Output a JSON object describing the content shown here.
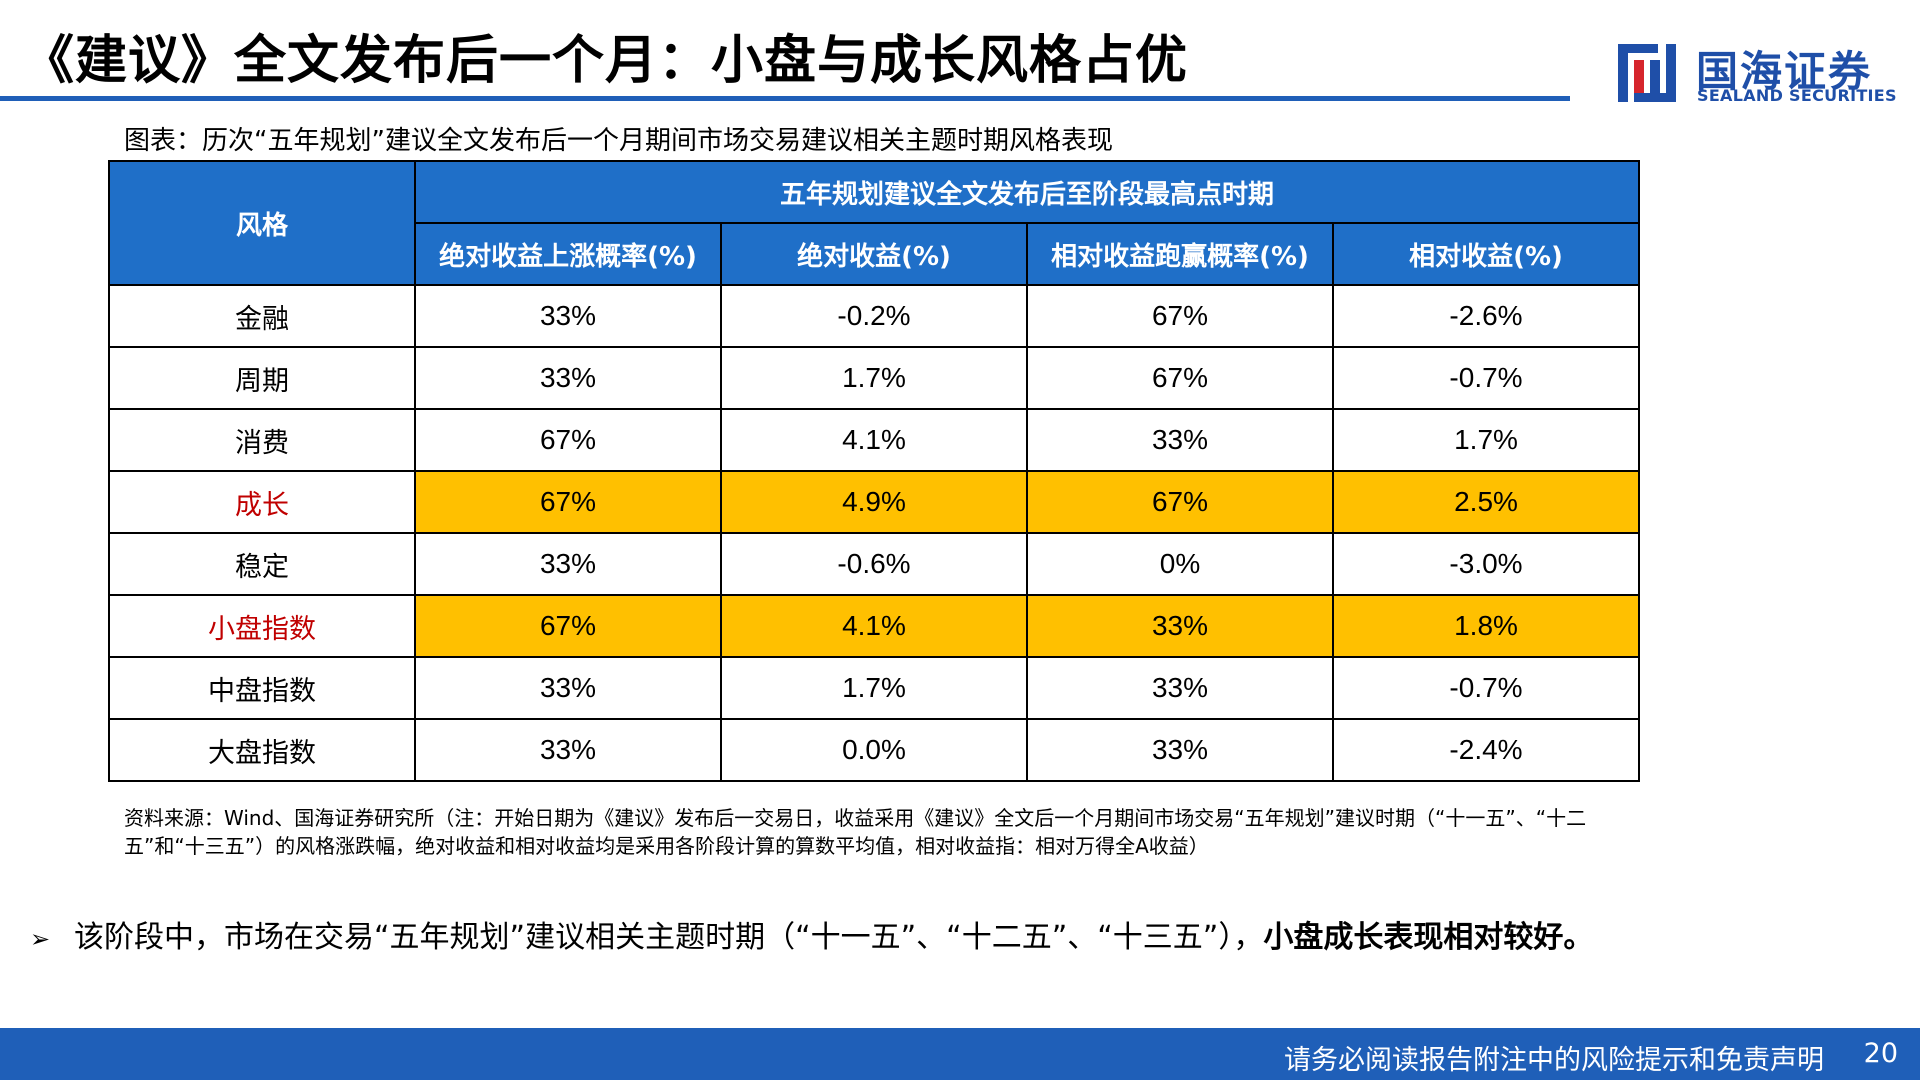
{
  "title": "《建议》全文发布后一个月：小盘与成长风格占优",
  "logo": {
    "cn": "国海证券",
    "en": "SEALAND SECURITIES"
  },
  "caption": "图表：历次“五年规划”建议全文发布后一个月期间市场交易建议相关主题时期风格表现",
  "table": {
    "corner_header": "风格",
    "group_header": "五年规划建议全文发布后至阶段最高点时期",
    "columns": [
      "绝对收益上涨概率(%)",
      "绝对收益(%)",
      "相对收益跑赢概率(%)",
      "相对收益(%)"
    ],
    "rows": [
      {
        "label": "金融",
        "values": [
          "33%",
          "-0.2%",
          "67%",
          "-2.6%"
        ],
        "highlight": false
      },
      {
        "label": "周期",
        "values": [
          "33%",
          "1.7%",
          "67%",
          "-0.7%"
        ],
        "highlight": false
      },
      {
        "label": "消费",
        "values": [
          "67%",
          "4.1%",
          "33%",
          "1.7%"
        ],
        "highlight": false
      },
      {
        "label": "成长",
        "values": [
          "67%",
          "4.9%",
          "67%",
          "2.5%"
        ],
        "highlight": true
      },
      {
        "label": "稳定",
        "values": [
          "33%",
          "-0.6%",
          "0%",
          "-3.0%"
        ],
        "highlight": false
      },
      {
        "label": "小盘指数",
        "values": [
          "67%",
          "4.1%",
          "33%",
          "1.8%"
        ],
        "highlight": true
      },
      {
        "label": "中盘指数",
        "values": [
          "33%",
          "1.7%",
          "33%",
          "-0.7%"
        ],
        "highlight": false
      },
      {
        "label": "大盘指数",
        "values": [
          "33%",
          "0.0%",
          "33%",
          "-2.4%"
        ],
        "highlight": false
      }
    ]
  },
  "source_note": "资料来源：Wind、国海证券研究所（注：开始日期为《建议》发布后一交易日，收益采用《建议》全文后一个月期间市场交易“五年规划”建议时期（“十一五”、“十二五”和“十三五”）的风格涨跌幅，绝对收益和相对收益均是采用各阶段计算的算数平均值，相对收益指：相对万得全A收益）",
  "bullet": {
    "marker": "➢",
    "text": "该阶段中，市场在交易“五年规划”建议相关主题时期（“十一五”、“十二五”、“十三五”），",
    "bold": "小盘成长表现相对较好。"
  },
  "footer": {
    "disclaimer": "请务必阅读报告附注中的风险提示和免责声明",
    "page": "20"
  },
  "colors": {
    "brand_blue": "#1f5fb8",
    "header_blue": "#1f6fc8",
    "highlight": "#ffc000",
    "highlight_text": "#c00000"
  }
}
